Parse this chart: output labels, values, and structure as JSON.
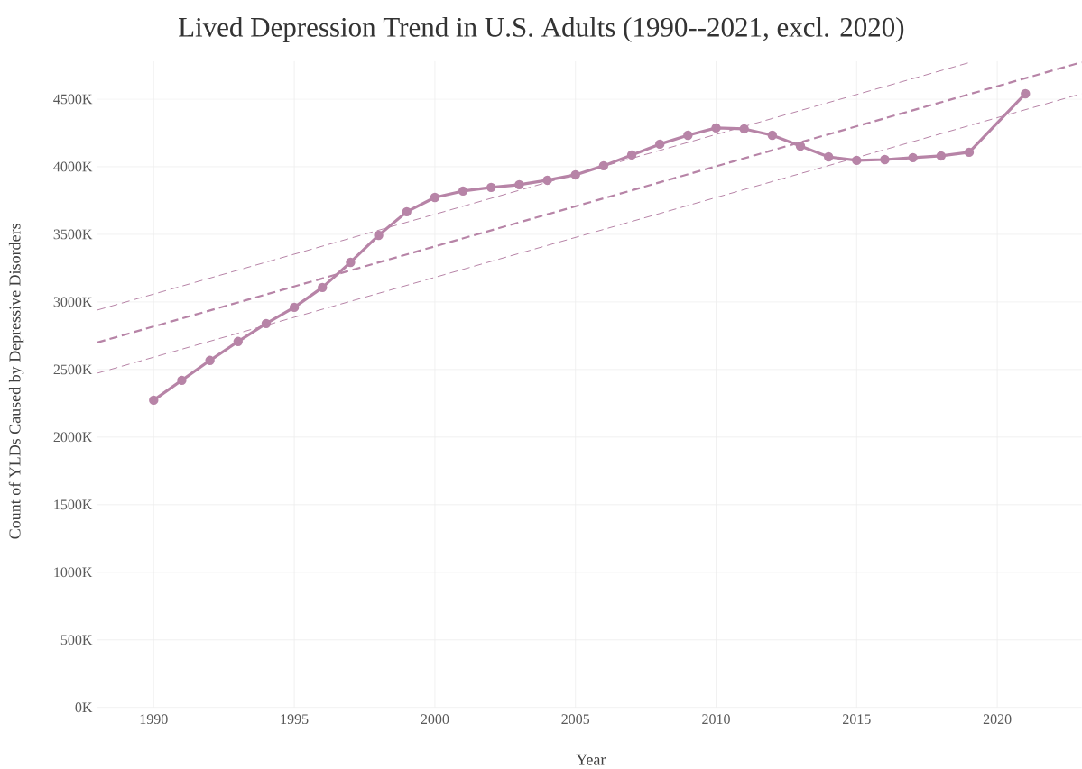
{
  "chart_data": {
    "type": "line",
    "title": "Lived Depression Trend in U.S. Adults  (1990--2021, excl. 2020)",
    "xlabel": "Year",
    "ylabel": "Count of YLDs Caused by Depressive Disorders",
    "xlim": [
      1988,
      2023
    ],
    "ylim": [
      0,
      4780
    ],
    "xticks": [
      1990,
      1995,
      2000,
      2005,
      2010,
      2015,
      2020
    ],
    "yticks": [
      {
        "value": 0,
        "label": "0K"
      },
      {
        "value": 500,
        "label": "500K"
      },
      {
        "value": 1000,
        "label": "1000K"
      },
      {
        "value": 1500,
        "label": "1500K"
      },
      {
        "value": 2000,
        "label": "2000K"
      },
      {
        "value": 2500,
        "label": "2500K"
      },
      {
        "value": 3000,
        "label": "3000K"
      },
      {
        "value": 3500,
        "label": "3500K"
      },
      {
        "value": 4000,
        "label": "4000K"
      },
      {
        "value": 4500,
        "label": "4500K"
      }
    ],
    "grid": true,
    "series": [
      {
        "color": "#b784a7",
        "marker": "circle",
        "line_style": "solid",
        "x": [
          1990,
          1991,
          1992,
          1993,
          1994,
          1995,
          1996,
          1997,
          1998,
          1999,
          2000,
          2001,
          2002,
          2003,
          2004,
          2005,
          2006,
          2007,
          2008,
          2009,
          2010,
          2011,
          2012,
          2013,
          2014,
          2015,
          2016,
          2017,
          2018,
          2019,
          2021
        ],
        "values": [
          2273,
          2420,
          2567,
          2707,
          2840,
          2960,
          3107,
          3293,
          3493,
          3667,
          3773,
          3820,
          3847,
          3867,
          3900,
          3940,
          4007,
          4087,
          4167,
          4233,
          4287,
          4280,
          4233,
          4153,
          4073,
          4047,
          4053,
          4067,
          4080,
          4107,
          4540
        ]
      },
      {
        "color": "#b784a7",
        "marker": "none",
        "line_style": "dashed",
        "x": [
          1988,
          2023
        ],
        "values": [
          2700,
          4773
        ]
      },
      {
        "color": "#b784a7",
        "marker": "none",
        "line_style": "dashed",
        "x": [
          1988,
          2019
        ],
        "values": [
          2940,
          4770
        ]
      },
      {
        "color": "#b784a7",
        "marker": "none",
        "line_style": "dashed",
        "x": [
          1988,
          2023
        ],
        "values": [
          2473,
          4540
        ]
      }
    ]
  }
}
